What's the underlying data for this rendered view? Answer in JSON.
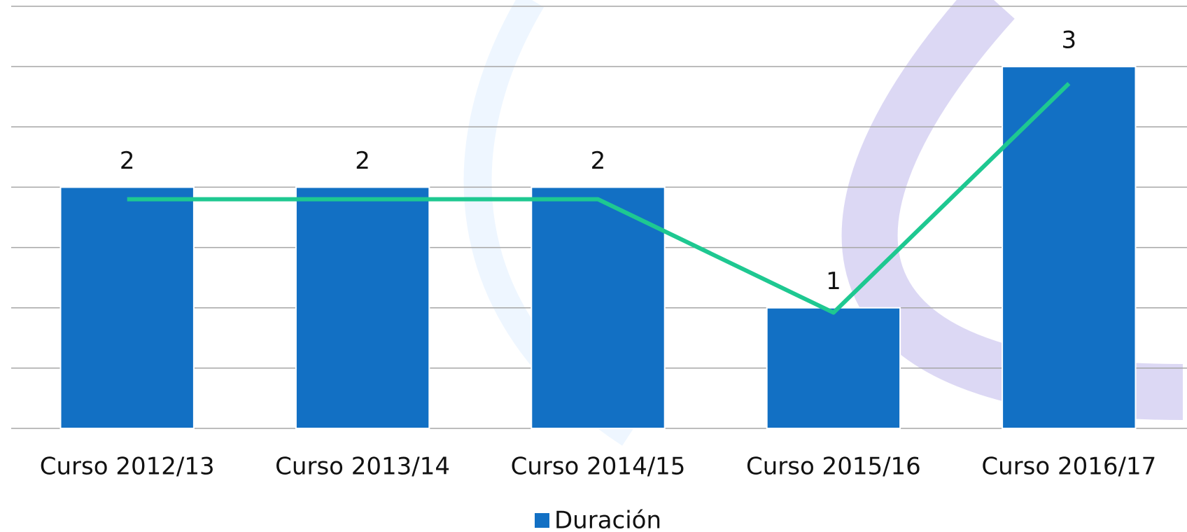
{
  "chart_data": {
    "type": "bar",
    "categories": [
      "Curso 2012/13",
      "Curso 2013/14",
      "Curso 2014/15",
      "Curso 2015/16",
      "Curso 2016/17"
    ],
    "series": [
      {
        "name": "Duración",
        "color": "#1270c4",
        "values": [
          2,
          2,
          2,
          1,
          3
        ]
      }
    ],
    "line": {
      "type": "line",
      "color": "#1ec891",
      "values": [
        1.9,
        1.9,
        1.9,
        0.96,
        2.86
      ]
    },
    "ylim": [
      0,
      3.5
    ],
    "yticks": [
      0,
      0.5,
      1,
      1.5,
      2,
      2.5,
      3,
      3.5
    ],
    "grid": true,
    "legend": "bottom"
  }
}
